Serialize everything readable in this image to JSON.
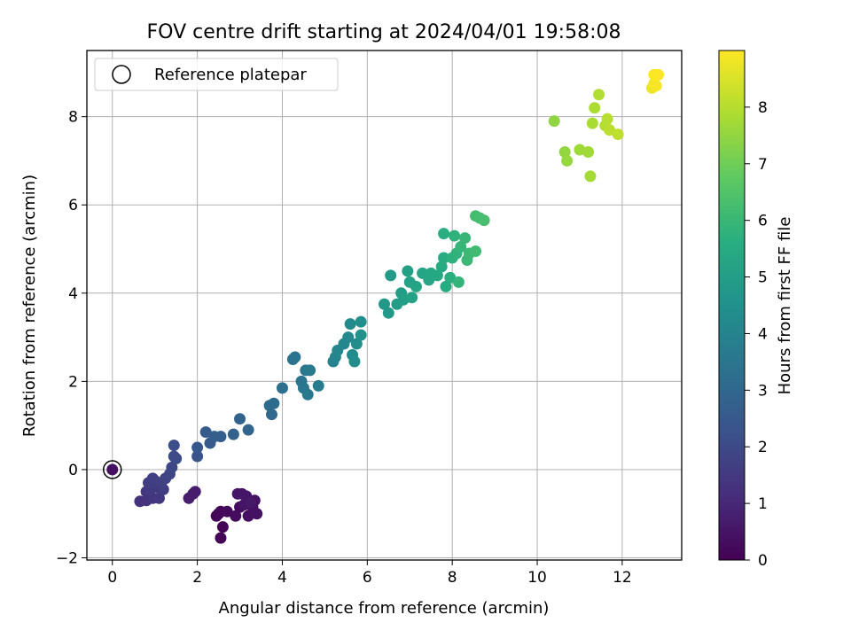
{
  "chart_data": {
    "type": "scatter",
    "title": "FOV centre drift starting at 2024/04/01 19:58:08",
    "xlabel": "Angular distance from reference (arcmin)",
    "ylabel": "Rotation from reference (arcmin)",
    "xlim": [
      -0.6,
      13.4
    ],
    "ylim": [
      -2.05,
      9.5
    ],
    "xticks": [
      "0",
      "2",
      "4",
      "6",
      "8",
      "10",
      "12"
    ],
    "yticks": [
      "−2",
      "0",
      "2",
      "4",
      "6",
      "8"
    ],
    "grid": true,
    "colormap": "viridis",
    "colorbar": {
      "label": "Hours from first FF file",
      "range": [
        0,
        9
      ],
      "ticks": [
        "0",
        "1",
        "2",
        "3",
        "4",
        "5",
        "6",
        "7",
        "8"
      ]
    },
    "legend": {
      "placement": "top-left",
      "entries": [
        {
          "label": "Reference platepar",
          "marker": "open-circle"
        }
      ]
    },
    "reference_point": {
      "x": 0,
      "y": 0,
      "t": 0.4
    },
    "points": [
      {
        "x": 2.5,
        "y": -1.0,
        "t": 0.0
      },
      {
        "x": 2.55,
        "y": -1.55,
        "t": 0.05
      },
      {
        "x": 2.6,
        "y": -1.3,
        "t": 0.1
      },
      {
        "x": 2.45,
        "y": -1.05,
        "t": 0.1
      },
      {
        "x": 2.55,
        "y": -0.95,
        "t": 0.15
      },
      {
        "x": 2.7,
        "y": -0.95,
        "t": 0.2
      },
      {
        "x": 2.9,
        "y": -1.05,
        "t": 0.25
      },
      {
        "x": 3.0,
        "y": -0.85,
        "t": 0.3
      },
      {
        "x": 3.2,
        "y": -1.05,
        "t": 0.35
      },
      {
        "x": 3.3,
        "y": -0.85,
        "t": 0.4
      },
      {
        "x": 3.4,
        "y": -1.0,
        "t": 0.45
      },
      {
        "x": 3.35,
        "y": -0.7,
        "t": 0.45
      },
      {
        "x": 3.1,
        "y": -0.8,
        "t": 0.5
      },
      {
        "x": 3.05,
        "y": -0.55,
        "t": 0.5
      },
      {
        "x": 3.15,
        "y": -0.6,
        "t": 0.55
      },
      {
        "x": 2.95,
        "y": -0.55,
        "t": 0.55
      },
      {
        "x": 3.25,
        "y": -0.75,
        "t": 0.6
      },
      {
        "x": 1.95,
        "y": -0.5,
        "t": 0.7
      },
      {
        "x": 1.8,
        "y": -0.65,
        "t": 0.75
      },
      {
        "x": 1.9,
        "y": -0.55,
        "t": 0.75
      },
      {
        "x": 0.65,
        "y": -0.72,
        "t": 1.3
      },
      {
        "x": 0.8,
        "y": -0.7,
        "t": 1.35
      },
      {
        "x": 0.95,
        "y": -0.65,
        "t": 1.4
      },
      {
        "x": 0.8,
        "y": -0.5,
        "t": 1.45
      },
      {
        "x": 1.1,
        "y": -0.65,
        "t": 1.5
      },
      {
        "x": 0.9,
        "y": -0.45,
        "t": 1.55
      },
      {
        "x": 1.05,
        "y": -0.4,
        "t": 1.55
      },
      {
        "x": 1.2,
        "y": -0.45,
        "t": 1.6
      },
      {
        "x": 0.85,
        "y": -0.3,
        "t": 1.6
      },
      {
        "x": 1.0,
        "y": -0.25,
        "t": 1.65
      },
      {
        "x": 0.95,
        "y": -0.2,
        "t": 1.7
      },
      {
        "x": 1.15,
        "y": -0.3,
        "t": 1.75
      },
      {
        "x": 1.25,
        "y": -0.2,
        "t": 1.8
      },
      {
        "x": 1.35,
        "y": -0.1,
        "t": 1.85
      },
      {
        "x": 1.4,
        "y": 0.05,
        "t": 1.95
      },
      {
        "x": 1.5,
        "y": 0.25,
        "t": 2.05
      },
      {
        "x": 1.45,
        "y": 0.3,
        "t": 2.1
      },
      {
        "x": 1.45,
        "y": 0.55,
        "t": 2.15
      },
      {
        "x": 2.0,
        "y": 0.3,
        "t": 2.4
      },
      {
        "x": 2.0,
        "y": 0.5,
        "t": 2.45
      },
      {
        "x": 2.3,
        "y": 0.6,
        "t": 2.6
      },
      {
        "x": 2.2,
        "y": 0.85,
        "t": 2.65
      },
      {
        "x": 2.4,
        "y": 0.75,
        "t": 2.7
      },
      {
        "x": 2.55,
        "y": 0.75,
        "t": 2.75
      },
      {
        "x": 2.85,
        "y": 0.8,
        "t": 2.85
      },
      {
        "x": 3.0,
        "y": 1.15,
        "t": 2.9
      },
      {
        "x": 3.2,
        "y": 0.9,
        "t": 2.95
      },
      {
        "x": 3.75,
        "y": 1.25,
        "t": 3.1
      },
      {
        "x": 3.7,
        "y": 1.45,
        "t": 3.15
      },
      {
        "x": 3.8,
        "y": 1.5,
        "t": 3.2
      },
      {
        "x": 4.0,
        "y": 1.85,
        "t": 3.3
      },
      {
        "x": 4.25,
        "y": 2.5,
        "t": 3.4
      },
      {
        "x": 4.3,
        "y": 2.55,
        "t": 3.45
      },
      {
        "x": 4.45,
        "y": 2.0,
        "t": 3.5
      },
      {
        "x": 4.5,
        "y": 1.85,
        "t": 3.55
      },
      {
        "x": 4.55,
        "y": 2.25,
        "t": 3.6
      },
      {
        "x": 4.6,
        "y": 1.7,
        "t": 3.65
      },
      {
        "x": 4.65,
        "y": 2.25,
        "t": 3.7
      },
      {
        "x": 4.85,
        "y": 1.9,
        "t": 3.8
      },
      {
        "x": 5.2,
        "y": 2.45,
        "t": 4.0
      },
      {
        "x": 5.25,
        "y": 2.55,
        "t": 4.05
      },
      {
        "x": 5.3,
        "y": 2.7,
        "t": 4.1
      },
      {
        "x": 5.45,
        "y": 2.85,
        "t": 4.15
      },
      {
        "x": 5.55,
        "y": 3.0,
        "t": 4.2
      },
      {
        "x": 5.6,
        "y": 3.3,
        "t": 4.25
      },
      {
        "x": 5.65,
        "y": 2.6,
        "t": 4.3
      },
      {
        "x": 5.7,
        "y": 2.45,
        "t": 4.35
      },
      {
        "x": 5.75,
        "y": 2.85,
        "t": 4.4
      },
      {
        "x": 5.85,
        "y": 3.35,
        "t": 4.45
      },
      {
        "x": 5.85,
        "y": 3.05,
        "t": 4.5
      },
      {
        "x": 6.4,
        "y": 3.75,
        "t": 4.8
      },
      {
        "x": 6.5,
        "y": 3.55,
        "t": 4.85
      },
      {
        "x": 6.55,
        "y": 4.4,
        "t": 4.9
      },
      {
        "x": 6.7,
        "y": 3.75,
        "t": 4.95
      },
      {
        "x": 6.8,
        "y": 4.0,
        "t": 5.0
      },
      {
        "x": 6.85,
        "y": 3.85,
        "t": 5.05
      },
      {
        "x": 6.95,
        "y": 4.5,
        "t": 5.1
      },
      {
        "x": 7.0,
        "y": 4.25,
        "t": 5.15
      },
      {
        "x": 7.05,
        "y": 3.9,
        "t": 5.2
      },
      {
        "x": 7.15,
        "y": 4.15,
        "t": 5.25
      },
      {
        "x": 7.3,
        "y": 4.45,
        "t": 5.3
      },
      {
        "x": 7.45,
        "y": 4.3,
        "t": 5.35
      },
      {
        "x": 7.5,
        "y": 4.45,
        "t": 5.4
      },
      {
        "x": 7.65,
        "y": 4.4,
        "t": 5.45
      },
      {
        "x": 7.75,
        "y": 4.6,
        "t": 5.5
      },
      {
        "x": 7.8,
        "y": 4.8,
        "t": 5.55
      },
      {
        "x": 7.85,
        "y": 4.15,
        "t": 5.6
      },
      {
        "x": 7.8,
        "y": 5.35,
        "t": 5.65
      },
      {
        "x": 7.95,
        "y": 4.35,
        "t": 5.7
      },
      {
        "x": 8.0,
        "y": 4.8,
        "t": 5.75
      },
      {
        "x": 8.05,
        "y": 5.3,
        "t": 5.8
      },
      {
        "x": 8.1,
        "y": 4.9,
        "t": 5.85
      },
      {
        "x": 8.15,
        "y": 4.25,
        "t": 5.9
      },
      {
        "x": 8.2,
        "y": 5.05,
        "t": 5.95
      },
      {
        "x": 8.3,
        "y": 5.25,
        "t": 6.0
      },
      {
        "x": 8.35,
        "y": 4.75,
        "t": 6.05
      },
      {
        "x": 8.4,
        "y": 4.9,
        "t": 6.1
      },
      {
        "x": 8.55,
        "y": 4.95,
        "t": 6.2
      },
      {
        "x": 8.55,
        "y": 5.75,
        "t": 6.25
      },
      {
        "x": 8.65,
        "y": 5.7,
        "t": 6.3
      },
      {
        "x": 8.75,
        "y": 5.65,
        "t": 6.35
      },
      {
        "x": 10.4,
        "y": 7.9,
        "t": 7.5
      },
      {
        "x": 10.65,
        "y": 7.2,
        "t": 7.55
      },
      {
        "x": 10.7,
        "y": 7.0,
        "t": 7.6
      },
      {
        "x": 11.0,
        "y": 7.25,
        "t": 7.7
      },
      {
        "x": 11.2,
        "y": 7.2,
        "t": 7.75
      },
      {
        "x": 11.25,
        "y": 6.65,
        "t": 7.8
      },
      {
        "x": 11.3,
        "y": 7.85,
        "t": 7.85
      },
      {
        "x": 11.35,
        "y": 8.2,
        "t": 7.9
      },
      {
        "x": 11.45,
        "y": 8.5,
        "t": 7.95
      },
      {
        "x": 11.6,
        "y": 7.8,
        "t": 8.0
      },
      {
        "x": 11.65,
        "y": 7.95,
        "t": 8.05
      },
      {
        "x": 11.7,
        "y": 7.7,
        "t": 8.1
      },
      {
        "x": 11.9,
        "y": 7.6,
        "t": 8.15
      },
      {
        "x": 12.7,
        "y": 8.65,
        "t": 8.8
      },
      {
        "x": 12.75,
        "y": 8.75,
        "t": 8.85
      },
      {
        "x": 12.8,
        "y": 8.7,
        "t": 8.9
      },
      {
        "x": 12.75,
        "y": 8.95,
        "t": 8.95
      },
      {
        "x": 12.85,
        "y": 8.95,
        "t": 9.0
      }
    ]
  }
}
